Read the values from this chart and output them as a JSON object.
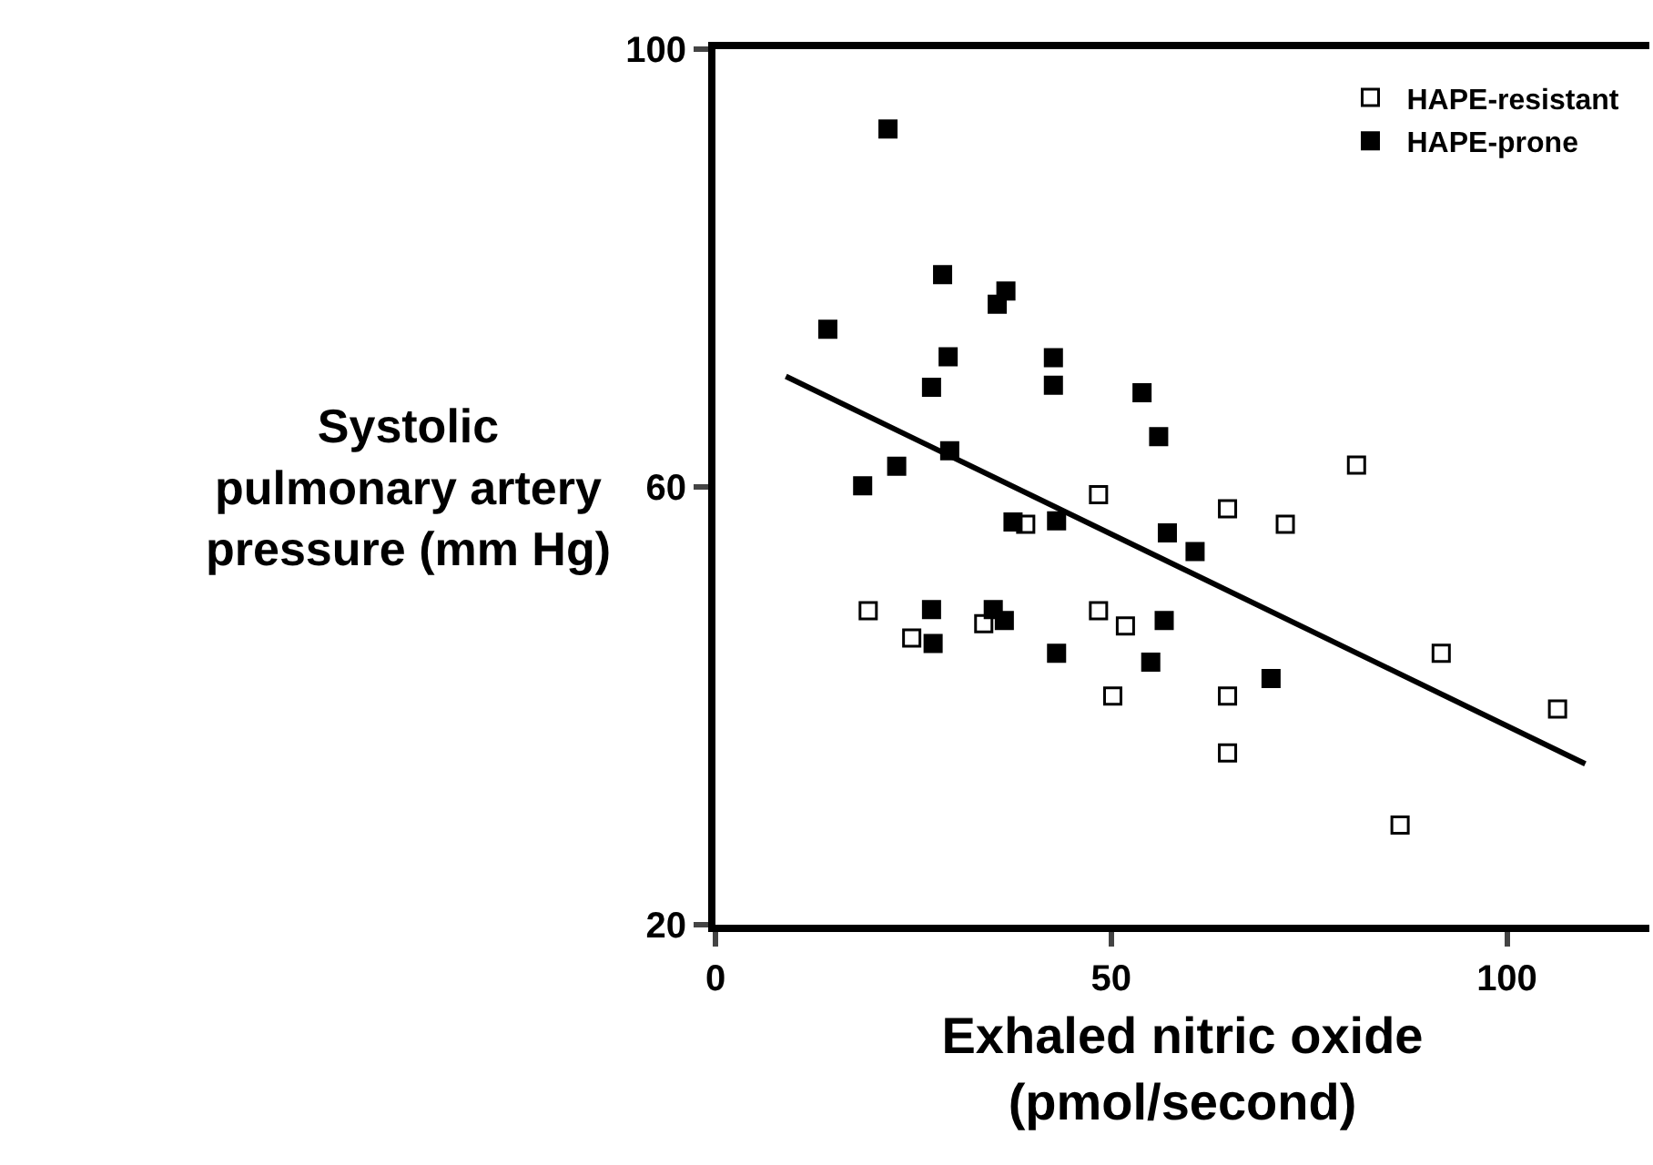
{
  "chart_data": {
    "type": "scatter",
    "xlabel": "Exhaled nitric oxide\n(pmol/second)",
    "ylabel": "Systolic\npulmonary artery\npressure (mm Hg)",
    "xlim": [
      0,
      118
    ],
    "ylim": [
      20,
      100
    ],
    "xticks": [
      0,
      50,
      100
    ],
    "yticks": [
      20,
      60,
      100
    ],
    "legend": "top right",
    "series": [
      {
        "name": "HAPE-resistant",
        "color": "#ffffff",
        "marker": "square",
        "x": [
          19.3,
          24.8,
          33.9,
          39.2,
          48.4,
          48.4,
          51.8,
          50.2,
          64.7,
          72.0,
          81.0,
          64.7,
          64.7,
          91.7,
          106.4,
          86.5
        ],
        "values": [
          48.7,
          46.2,
          47.5,
          56.6,
          59.3,
          48.7,
          47.3,
          40.9,
          58.0,
          56.6,
          62.0,
          40.9,
          35.7,
          44.8,
          39.7,
          29.1
        ]
      },
      {
        "name": "HAPE-prone",
        "color": "#000000",
        "marker": "square",
        "x": [
          21.8,
          14.2,
          28.7,
          36.7,
          35.6,
          29.4,
          42.7,
          27.3,
          42.7,
          53.9,
          56.0,
          29.6,
          22.9,
          18.6,
          37.6,
          43.1,
          57.1,
          60.6,
          27.3,
          35.1,
          36.5,
          27.5,
          56.7,
          43.1,
          55.0,
          70.2
        ],
        "values": [
          92.7,
          74.4,
          79.4,
          77.9,
          76.7,
          71.9,
          71.8,
          69.1,
          69.3,
          68.6,
          64.6,
          63.3,
          61.9,
          60.1,
          56.8,
          56.9,
          55.8,
          54.1,
          48.8,
          48.8,
          47.8,
          45.7,
          47.8,
          44.8,
          44.0,
          42.5
        ]
      },
      {
        "type": "line",
        "color": "#000000",
        "marker": "none",
        "x": [
          8.9,
          109.9
        ],
        "values": [
          70.1,
          34.7
        ]
      }
    ]
  }
}
